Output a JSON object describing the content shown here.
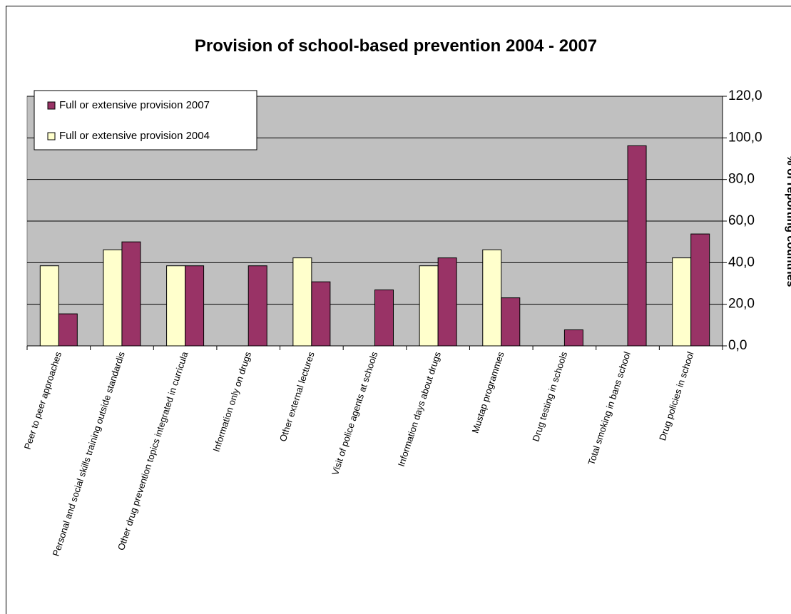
{
  "chart_data": {
    "type": "bar",
    "title": "Provision of school-based prevention 2004 - 2007",
    "y_axis_label": "% of reporting countries",
    "categories": [
      "Peer to peer approaches",
      "Personal and social skills training outside standardis",
      "Other drug prevention topics integrated in curricula",
      "Information only on drugs",
      "Other external lectures",
      "Visit of police agents at schools",
      "Information days about drugs",
      "Mustap programmes",
      "Drug testing in schools",
      "Total smoking in bans school",
      "Drug policies in school"
    ],
    "series": [
      {
        "name": "Full or extensive provision 2007",
        "color": "#993366",
        "values": [
          15.4,
          50.0,
          38.5,
          38.5,
          30.8,
          26.9,
          42.3,
          23.1,
          7.7,
          96.2,
          53.8
        ]
      },
      {
        "name": "Full or extensive provision 2004",
        "color": "#ffffcc",
        "values": [
          38.5,
          46.2,
          38.5,
          null,
          42.3,
          null,
          38.5,
          46.2,
          null,
          null,
          42.3
        ]
      }
    ],
    "ylim": [
      0,
      120
    ],
    "yticks": [
      {
        "value": 0,
        "label": "0,0"
      },
      {
        "value": 20,
        "label": "20,0"
      },
      {
        "value": 40,
        "label": "40,0"
      },
      {
        "value": 60,
        "label": "60,0"
      },
      {
        "value": 80,
        "label": "80,0"
      },
      {
        "value": 100,
        "label": "100,0"
      },
      {
        "value": 120,
        "label": "120,0"
      }
    ],
    "grid": true,
    "legend": "top-left",
    "plot_background": "#c0c0c0"
  }
}
